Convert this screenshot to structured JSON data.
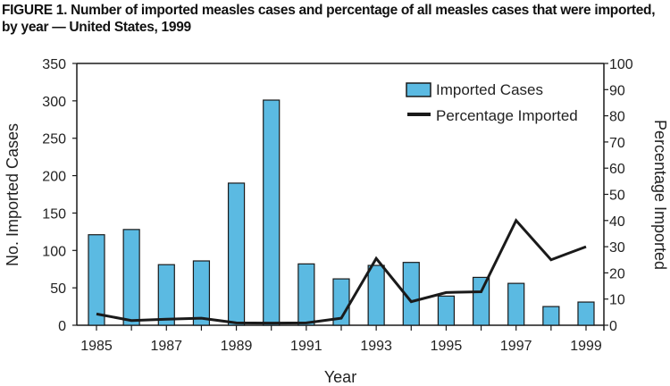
{
  "chart_data": {
    "type": "bar+line",
    "title": "FIGURE 1. Number of imported measles cases and percentage of all measles cases that were imported, by year — United States, 1999",
    "xlabel": "Year",
    "ylabel": "No. Imported Cases",
    "ylabel_right": "Percentage Imported",
    "ylim": [
      0,
      350
    ],
    "ylim_right": [
      0,
      100
    ],
    "yticks": [
      0,
      50,
      100,
      150,
      200,
      250,
      300,
      350
    ],
    "yticks_right": [
      0,
      10,
      20,
      30,
      40,
      50,
      60,
      70,
      80,
      90,
      100
    ],
    "categories": [
      1985,
      1986,
      1987,
      1988,
      1989,
      1990,
      1991,
      1992,
      1993,
      1994,
      1995,
      1996,
      1997,
      1998,
      1999
    ],
    "xtick_labels": [
      "1985",
      "1987",
      "1989",
      "1991",
      "1993",
      "1995",
      "1997",
      "1999"
    ],
    "legend_position": "top-right",
    "grid": false,
    "series": [
      {
        "name": "Imported Cases",
        "type": "bar",
        "axis": "left",
        "color": "#5bbae2",
        "values": [
          121,
          128,
          81,
          86,
          190,
          301,
          82,
          62,
          80,
          84,
          39,
          64,
          56,
          25,
          31
        ]
      },
      {
        "name": "Percentage Imported",
        "type": "line",
        "axis": "right",
        "color": "#1a1a1a",
        "values": [
          4.3,
          1.8,
          2.3,
          2.7,
          0.9,
          0.8,
          0.9,
          2.7,
          25.5,
          9,
          12.5,
          12.8,
          40,
          25,
          30
        ]
      }
    ]
  }
}
